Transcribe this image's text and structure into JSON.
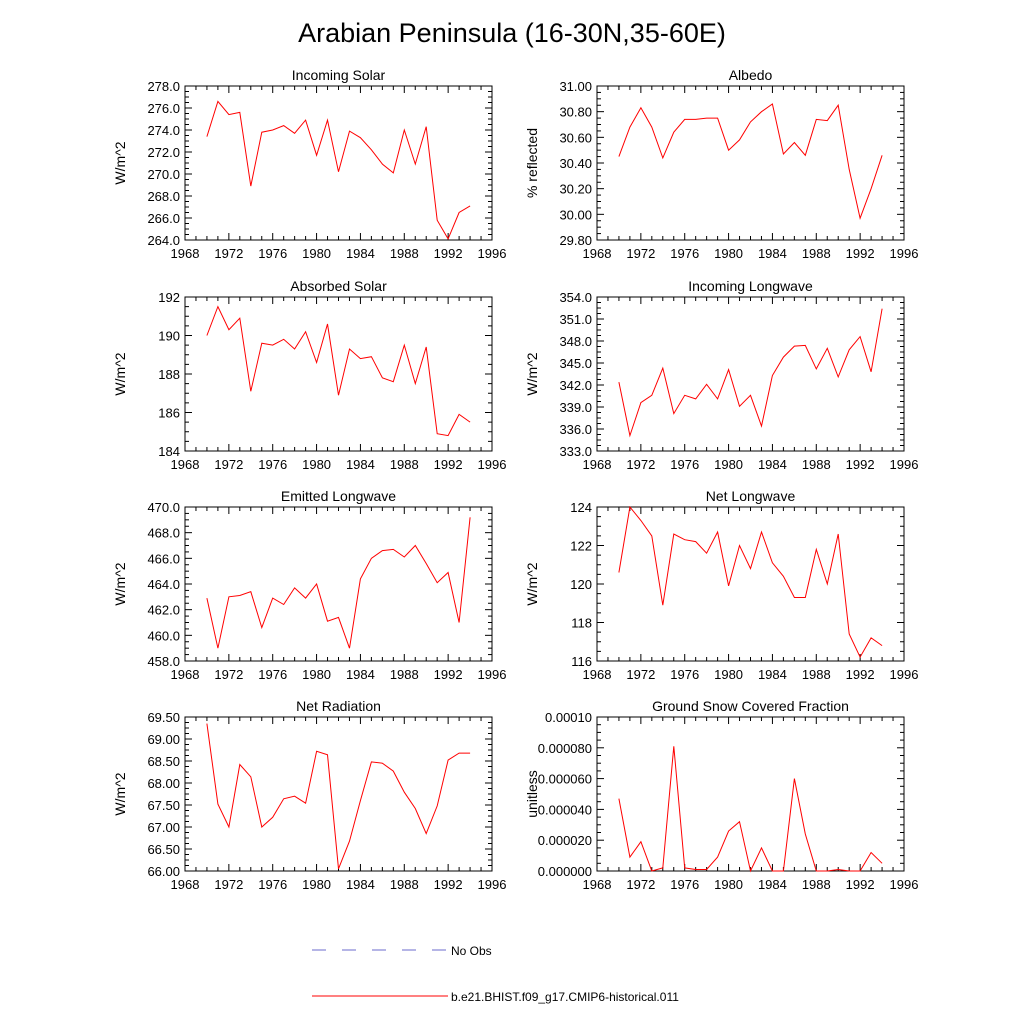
{
  "figure": {
    "title": "Arabian Peninsula (16-30N,35-60E)",
    "line_color": "#ff0000",
    "obs_color": "#6b6bcc"
  },
  "legend": {
    "obs_label": "No Obs",
    "model_label": "b.e21.BHIST.f09_g17.CMIP6-historical.011"
  },
  "chart_data": [
    {
      "type": "line",
      "title": "Incoming Solar",
      "ylabel": "W/m^2",
      "xlim": [
        1968,
        1996
      ],
      "xticks": [
        1968,
        1972,
        1976,
        1980,
        1984,
        1988,
        1992,
        1996
      ],
      "ylim": [
        264.0,
        278.0
      ],
      "yticks": [
        "264.0",
        "266.0",
        "268.0",
        "270.0",
        "272.0",
        "274.0",
        "276.0",
        "278.0"
      ],
      "series": [
        {
          "name": "b.e21.BHIST.f09_g17.CMIP6-historical.011",
          "x": [
            1970,
            1971,
            1972,
            1973,
            1974,
            1975,
            1976,
            1977,
            1978,
            1979,
            1980,
            1981,
            1982,
            1983,
            1984,
            1985,
            1986,
            1987,
            1988,
            1989,
            1990,
            1991,
            1992,
            1993,
            1994
          ],
          "y": [
            273.4,
            276.6,
            275.4,
            275.6,
            268.9,
            273.8,
            274.0,
            274.4,
            273.7,
            274.9,
            271.7,
            274.9,
            270.2,
            273.9,
            273.3,
            272.2,
            270.9,
            270.1,
            274.0,
            270.9,
            274.3,
            265.8,
            264.1,
            266.5,
            267.1
          ]
        }
      ]
    },
    {
      "type": "line",
      "title": "Albedo",
      "ylabel": "% reflected",
      "xlim": [
        1968,
        1996
      ],
      "xticks": [
        1968,
        1972,
        1976,
        1980,
        1984,
        1988,
        1992,
        1996
      ],
      "ylim": [
        29.8,
        31.0
      ],
      "yticks": [
        "29.80",
        "30.00",
        "30.20",
        "30.40",
        "30.60",
        "30.80",
        "31.00"
      ],
      "series": [
        {
          "name": "b.e21.BHIST.f09_g17.CMIP6-historical.011",
          "x": [
            1970,
            1971,
            1972,
            1973,
            1974,
            1975,
            1976,
            1977,
            1978,
            1979,
            1980,
            1981,
            1982,
            1983,
            1984,
            1985,
            1986,
            1987,
            1988,
            1989,
            1990,
            1991,
            1992,
            1993,
            1994
          ],
          "y": [
            30.45,
            30.68,
            30.83,
            30.68,
            30.44,
            30.64,
            30.74,
            30.74,
            30.75,
            30.75,
            30.5,
            30.58,
            30.72,
            30.8,
            30.86,
            30.47,
            30.56,
            30.46,
            30.74,
            30.73,
            30.85,
            30.35,
            29.97,
            30.2,
            30.46
          ]
        }
      ]
    },
    {
      "type": "line",
      "title": "Absorbed Solar",
      "ylabel": "W/m^2",
      "xlim": [
        1968,
        1996
      ],
      "xticks": [
        1968,
        1972,
        1976,
        1980,
        1984,
        1988,
        1992,
        1996
      ],
      "ylim": [
        184,
        192
      ],
      "yticks": [
        "184",
        "186",
        "188",
        "190",
        "192"
      ],
      "series": [
        {
          "name": "b.e21.BHIST.f09_g17.CMIP6-historical.011",
          "x": [
            1970,
            1971,
            1972,
            1973,
            1974,
            1975,
            1976,
            1977,
            1978,
            1979,
            1980,
            1981,
            1982,
            1983,
            1984,
            1985,
            1986,
            1987,
            1988,
            1989,
            1990,
            1991,
            1992,
            1993,
            1994
          ],
          "y": [
            190.0,
            191.5,
            190.3,
            190.9,
            187.1,
            189.6,
            189.5,
            189.8,
            189.3,
            190.2,
            188.6,
            190.6,
            186.9,
            189.3,
            188.8,
            188.9,
            187.8,
            187.6,
            189.5,
            187.5,
            189.4,
            184.9,
            184.8,
            185.9,
            185.5
          ]
        }
      ]
    },
    {
      "type": "line",
      "title": "Incoming Longwave",
      "ylabel": "W/m^2",
      "xlim": [
        1968,
        1996
      ],
      "xticks": [
        1968,
        1972,
        1976,
        1980,
        1984,
        1988,
        1992,
        1996
      ],
      "ylim": [
        333.0,
        354.0
      ],
      "yticks": [
        "333.0",
        "336.0",
        "339.0",
        "342.0",
        "345.0",
        "348.0",
        "351.0",
        "354.0"
      ],
      "series": [
        {
          "name": "b.e21.BHIST.f09_g17.CMIP6-historical.011",
          "x": [
            1970,
            1971,
            1972,
            1973,
            1974,
            1975,
            1976,
            1977,
            1978,
            1979,
            1980,
            1981,
            1982,
            1983,
            1984,
            1985,
            1986,
            1987,
            1988,
            1989,
            1990,
            1991,
            1992,
            1993,
            1994
          ],
          "y": [
            342.4,
            335.1,
            339.6,
            340.6,
            344.3,
            338.1,
            340.6,
            340.1,
            342.1,
            340.1,
            344.1,
            339.1,
            340.6,
            336.4,
            343.3,
            345.8,
            347.3,
            347.4,
            344.2,
            347.0,
            343.1,
            346.8,
            348.6,
            343.8,
            352.4
          ]
        }
      ]
    },
    {
      "type": "line",
      "title": "Emitted Longwave",
      "ylabel": "W/m^2",
      "xlim": [
        1968,
        1996
      ],
      "xticks": [
        1968,
        1972,
        1976,
        1980,
        1984,
        1988,
        1992,
        1996
      ],
      "ylim": [
        458.0,
        470.0
      ],
      "yticks": [
        "458.0",
        "460.0",
        "462.0",
        "464.0",
        "466.0",
        "468.0",
        "470.0"
      ],
      "series": [
        {
          "name": "b.e21.BHIST.f09_g17.CMIP6-historical.011",
          "x": [
            1970,
            1971,
            1972,
            1973,
            1974,
            1975,
            1976,
            1977,
            1978,
            1979,
            1980,
            1981,
            1982,
            1983,
            1984,
            1985,
            1986,
            1987,
            1988,
            1989,
            1990,
            1991,
            1992,
            1993,
            1994
          ],
          "y": [
            462.9,
            459.0,
            463.0,
            463.1,
            463.4,
            460.6,
            462.9,
            462.4,
            463.7,
            462.9,
            464.0,
            461.1,
            461.4,
            459.0,
            464.4,
            466.0,
            466.6,
            466.7,
            466.1,
            467.0,
            465.6,
            464.1,
            464.9,
            461.0,
            469.2
          ]
        }
      ]
    },
    {
      "type": "line",
      "title": "Net Longwave",
      "ylabel": "W/m^2",
      "xlim": [
        1968,
        1996
      ],
      "xticks": [
        1968,
        1972,
        1976,
        1980,
        1984,
        1988,
        1992,
        1996
      ],
      "ylim": [
        116,
        124
      ],
      "yticks": [
        "116",
        "118",
        "120",
        "122",
        "124"
      ],
      "series": [
        {
          "name": "b.e21.BHIST.f09_g17.CMIP6-historical.011",
          "x": [
            1970,
            1971,
            1972,
            1973,
            1974,
            1975,
            1976,
            1977,
            1978,
            1979,
            1980,
            1981,
            1982,
            1983,
            1984,
            1985,
            1986,
            1987,
            1988,
            1989,
            1990,
            1991,
            1992,
            1993,
            1994
          ],
          "y": [
            120.6,
            124.0,
            123.3,
            122.5,
            118.9,
            122.6,
            122.3,
            122.2,
            121.6,
            122.7,
            119.9,
            122.0,
            120.8,
            122.7,
            121.1,
            120.4,
            119.3,
            119.3,
            121.8,
            120.0,
            122.6,
            117.4,
            116.2,
            117.2,
            116.8
          ]
        }
      ]
    },
    {
      "type": "line",
      "title": "Net Radiation",
      "ylabel": "W/m^2",
      "xlim": [
        1968,
        1996
      ],
      "xticks": [
        1968,
        1972,
        1976,
        1980,
        1984,
        1988,
        1992,
        1996
      ],
      "ylim": [
        66.0,
        69.5
      ],
      "yticks": [
        "66.00",
        "66.50",
        "67.00",
        "67.50",
        "68.00",
        "68.50",
        "69.00",
        "69.50"
      ],
      "series": [
        {
          "name": "b.e21.BHIST.f09_g17.CMIP6-historical.011",
          "x": [
            1970,
            1971,
            1972,
            1973,
            1974,
            1975,
            1976,
            1977,
            1978,
            1979,
            1980,
            1981,
            1982,
            1983,
            1984,
            1985,
            1986,
            1987,
            1988,
            1989,
            1990,
            1991,
            1992,
            1993,
            1994
          ],
          "y": [
            69.35,
            67.52,
            67.0,
            68.42,
            68.14,
            67.0,
            67.22,
            67.64,
            67.7,
            67.54,
            68.72,
            68.64,
            66.05,
            66.68,
            67.6,
            68.48,
            68.45,
            68.27,
            67.79,
            67.42,
            66.85,
            67.48,
            68.52,
            68.68,
            68.68
          ]
        }
      ]
    },
    {
      "type": "line",
      "title": "Ground Snow Covered Fraction",
      "ylabel": "unitless",
      "xlim": [
        1968,
        1996
      ],
      "xticks": [
        1968,
        1972,
        1976,
        1980,
        1984,
        1988,
        1992,
        1996
      ],
      "ylim": [
        0,
        0.0001
      ],
      "yticks": [
        "0.000000",
        "0.000020",
        "0.000040",
        "0.000060",
        "0.000080",
        "0.00010"
      ],
      "series": [
        {
          "name": "b.e21.BHIST.f09_g17.CMIP6-historical.011",
          "x": [
            1970,
            1971,
            1972,
            1973,
            1974,
            1975,
            1976,
            1977,
            1978,
            1979,
            1980,
            1981,
            1982,
            1983,
            1984,
            1985,
            1986,
            1987,
            1988,
            1989,
            1990,
            1991,
            1992,
            1993,
            1994
          ],
          "y": [
            4.7e-05,
            9e-06,
            1.9e-05,
            0.0,
            2e-06,
            8.1e-05,
            2e-06,
            1e-06,
            1e-06,
            9e-06,
            2.6e-05,
            3.2e-05,
            0.0,
            1.5e-05,
            0.0,
            0.0,
            6e-05,
            2.4e-05,
            0.0,
            0.0,
            1e-06,
            0.0,
            0.0,
            1.2e-05,
            5e-06
          ]
        }
      ]
    }
  ]
}
